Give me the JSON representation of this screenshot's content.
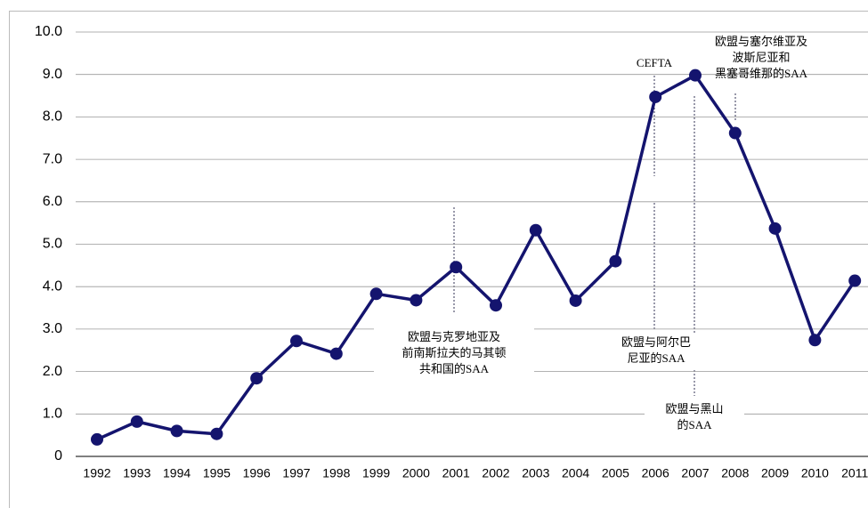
{
  "chart_data": {
    "type": "line",
    "categories": [
      "1992",
      "1993",
      "1994",
      "1995",
      "1996",
      "1997",
      "1998",
      "1999",
      "2000",
      "2001",
      "2002",
      "2003",
      "2004",
      "2005",
      "2006",
      "2007",
      "2008",
      "2009",
      "2010",
      "2011"
    ],
    "series": [
      {
        "color": "#14146e",
        "values": [
          0.4,
          0.82,
          0.6,
          0.53,
          1.84,
          2.72,
          2.42,
          3.83,
          3.68,
          4.46,
          3.56,
          5.33,
          3.67,
          4.6,
          8.47,
          8.98,
          7.62,
          5.37,
          2.74,
          4.14
        ]
      }
    ],
    "ylim": [
      0,
      10
    ],
    "yticks": [
      0,
      {
        "value": 1,
        "label": "1.0"
      },
      {
        "value": 2,
        "label": "2.0"
      },
      {
        "value": 3,
        "label": "3.0"
      },
      {
        "value": 4,
        "label": "4.0"
      },
      {
        "value": 5,
        "label": "5.0"
      },
      {
        "value": 6,
        "label": "6.0"
      },
      {
        "value": 7,
        "label": "7.0"
      },
      {
        "value": 8,
        "label": "8.0"
      },
      {
        "value": 9,
        "label": "9.0"
      },
      {
        "value": 10,
        "label": "10.0"
      }
    ],
    "grid": true,
    "annotations": [
      {
        "lines": [
          "欧盟与克罗地亚及",
          "前南斯拉夫的马其顿",
          "共和国的SAA"
        ]
      },
      {
        "lines": [
          "CEFTA"
        ]
      },
      {
        "lines": [
          "欧盟与阿尔巴",
          "尼亚的SAA"
        ]
      },
      {
        "lines": [
          "欧盟与黑山",
          "的SAA"
        ]
      },
      {
        "lines": [
          "欧盟与塞尔维亚及",
          "波斯尼亚和",
          "黑塞哥维那的SAA"
        ]
      }
    ]
  }
}
